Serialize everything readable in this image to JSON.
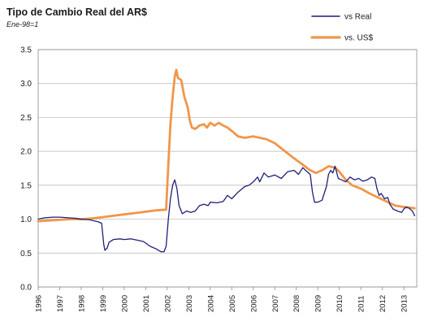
{
  "chart_data": {
    "type": "line",
    "title": "Tipo de Cambio Real del AR$",
    "subtitle": "Ene-98=1",
    "xlabel": "",
    "ylabel": "",
    "x_range": [
      1996,
      2013.6
    ],
    "ylim": [
      0,
      3.5
    ],
    "y_ticks": [
      "0.0",
      "0.5",
      "1.0",
      "1.5",
      "2.0",
      "2.5",
      "3.0",
      "3.5"
    ],
    "y_tick_values": [
      0,
      0.5,
      1.0,
      1.5,
      2.0,
      2.5,
      3.0,
      3.5
    ],
    "x_ticks": [
      "1996",
      "1997",
      "1998",
      "1999",
      "2000",
      "2001",
      "2002",
      "2003",
      "2004",
      "2005",
      "2006",
      "2007",
      "2008",
      "2009",
      "2010",
      "2011",
      "2012",
      "2013"
    ],
    "x_tick_values": [
      1996,
      1997,
      1998,
      1999,
      2000,
      2001,
      2002,
      2003,
      2004,
      2005,
      2006,
      2007,
      2008,
      2009,
      2010,
      2011,
      2012,
      2013
    ],
    "grid": "horizontal",
    "legend_position": "top-right",
    "series": [
      {
        "name": "vs Real",
        "color": "#1f1f7a",
        "points": [
          [
            1996.0,
            1.0
          ],
          [
            1996.3,
            1.02
          ],
          [
            1996.7,
            1.03
          ],
          [
            1997.0,
            1.03
          ],
          [
            1997.4,
            1.02
          ],
          [
            1997.8,
            1.01
          ],
          [
            1998.0,
            1.0
          ],
          [
            1998.4,
            0.99
          ],
          [
            1998.8,
            0.96
          ],
          [
            1998.95,
            0.94
          ],
          [
            1999.05,
            0.62
          ],
          [
            1999.1,
            0.54
          ],
          [
            1999.2,
            0.57
          ],
          [
            1999.3,
            0.66
          ],
          [
            1999.5,
            0.7
          ],
          [
            1999.8,
            0.71
          ],
          [
            2000.0,
            0.7
          ],
          [
            2000.3,
            0.71
          ],
          [
            2000.6,
            0.69
          ],
          [
            2000.9,
            0.67
          ],
          [
            2001.2,
            0.6
          ],
          [
            2001.5,
            0.56
          ],
          [
            2001.7,
            0.52
          ],
          [
            2001.85,
            0.52
          ],
          [
            2001.95,
            0.6
          ],
          [
            2002.05,
            1.0
          ],
          [
            2002.15,
            1.3
          ],
          [
            2002.25,
            1.5
          ],
          [
            2002.35,
            1.58
          ],
          [
            2002.45,
            1.45
          ],
          [
            2002.55,
            1.2
          ],
          [
            2002.7,
            1.08
          ],
          [
            2002.9,
            1.12
          ],
          [
            2003.1,
            1.1
          ],
          [
            2003.3,
            1.12
          ],
          [
            2003.5,
            1.2
          ],
          [
            2003.7,
            1.22
          ],
          [
            2003.9,
            1.2
          ],
          [
            2004.0,
            1.25
          ],
          [
            2004.3,
            1.24
          ],
          [
            2004.6,
            1.26
          ],
          [
            2004.8,
            1.35
          ],
          [
            2005.0,
            1.3
          ],
          [
            2005.3,
            1.4
          ],
          [
            2005.6,
            1.48
          ],
          [
            2005.8,
            1.5
          ],
          [
            2006.0,
            1.55
          ],
          [
            2006.2,
            1.62
          ],
          [
            2006.3,
            1.55
          ],
          [
            2006.5,
            1.68
          ],
          [
            2006.7,
            1.62
          ],
          [
            2007.0,
            1.65
          ],
          [
            2007.3,
            1.6
          ],
          [
            2007.6,
            1.7
          ],
          [
            2007.9,
            1.72
          ],
          [
            2008.1,
            1.66
          ],
          [
            2008.3,
            1.76
          ],
          [
            2008.5,
            1.7
          ],
          [
            2008.65,
            1.66
          ],
          [
            2008.75,
            1.4
          ],
          [
            2008.85,
            1.25
          ],
          [
            2009.0,
            1.25
          ],
          [
            2009.2,
            1.28
          ],
          [
            2009.4,
            1.48
          ],
          [
            2009.5,
            1.66
          ],
          [
            2009.6,
            1.72
          ],
          [
            2009.7,
            1.68
          ],
          [
            2009.8,
            1.78
          ],
          [
            2009.95,
            1.6
          ],
          [
            2010.1,
            1.58
          ],
          [
            2010.3,
            1.55
          ],
          [
            2010.5,
            1.62
          ],
          [
            2010.7,
            1.58
          ],
          [
            2010.9,
            1.6
          ],
          [
            2011.1,
            1.56
          ],
          [
            2011.3,
            1.58
          ],
          [
            2011.5,
            1.62
          ],
          [
            2011.65,
            1.6
          ],
          [
            2011.75,
            1.45
          ],
          [
            2011.85,
            1.35
          ],
          [
            2011.95,
            1.38
          ],
          [
            2012.1,
            1.3
          ],
          [
            2012.25,
            1.32
          ],
          [
            2012.35,
            1.22
          ],
          [
            2012.5,
            1.15
          ],
          [
            2012.7,
            1.12
          ],
          [
            2012.9,
            1.1
          ],
          [
            2013.0,
            1.15
          ],
          [
            2013.1,
            1.18
          ],
          [
            2013.25,
            1.16
          ],
          [
            2013.4,
            1.12
          ],
          [
            2013.5,
            1.05
          ]
        ]
      },
      {
        "name": "vs. US$",
        "color": "#f0964a",
        "points": [
          [
            1996.0,
            0.97
          ],
          [
            1996.5,
            0.98
          ],
          [
            1997.0,
            0.99
          ],
          [
            1997.5,
            1.0
          ],
          [
            1998.0,
            1.0
          ],
          [
            1998.5,
            1.01
          ],
          [
            1999.0,
            1.03
          ],
          [
            1999.5,
            1.05
          ],
          [
            2000.0,
            1.07
          ],
          [
            2000.5,
            1.09
          ],
          [
            2001.0,
            1.11
          ],
          [
            2001.5,
            1.13
          ],
          [
            2001.95,
            1.14
          ],
          [
            2002.05,
            1.8
          ],
          [
            2002.15,
            2.4
          ],
          [
            2002.25,
            2.8
          ],
          [
            2002.35,
            3.1
          ],
          [
            2002.42,
            3.2
          ],
          [
            2002.5,
            3.08
          ],
          [
            2002.65,
            3.05
          ],
          [
            2002.8,
            2.8
          ],
          [
            2002.95,
            2.65
          ],
          [
            2003.05,
            2.45
          ],
          [
            2003.15,
            2.35
          ],
          [
            2003.3,
            2.33
          ],
          [
            2003.5,
            2.38
          ],
          [
            2003.7,
            2.4
          ],
          [
            2003.85,
            2.35
          ],
          [
            2004.0,
            2.42
          ],
          [
            2004.2,
            2.38
          ],
          [
            2004.4,
            2.42
          ],
          [
            2004.6,
            2.38
          ],
          [
            2004.8,
            2.35
          ],
          [
            2005.0,
            2.3
          ],
          [
            2005.3,
            2.22
          ],
          [
            2005.6,
            2.2
          ],
          [
            2006.0,
            2.22
          ],
          [
            2006.3,
            2.2
          ],
          [
            2006.6,
            2.18
          ],
          [
            2007.0,
            2.12
          ],
          [
            2007.4,
            2.02
          ],
          [
            2007.8,
            1.92
          ],
          [
            2008.1,
            1.85
          ],
          [
            2008.4,
            1.78
          ],
          [
            2008.6,
            1.73
          ],
          [
            2008.9,
            1.68
          ],
          [
            2009.2,
            1.72
          ],
          [
            2009.5,
            1.78
          ],
          [
            2009.8,
            1.76
          ],
          [
            2010.0,
            1.7
          ],
          [
            2010.3,
            1.58
          ],
          [
            2010.6,
            1.5
          ],
          [
            2011.0,
            1.45
          ],
          [
            2011.4,
            1.38
          ],
          [
            2011.8,
            1.32
          ],
          [
            2012.2,
            1.26
          ],
          [
            2012.6,
            1.2
          ],
          [
            2013.0,
            1.18
          ],
          [
            2013.3,
            1.17
          ],
          [
            2013.5,
            1.16
          ]
        ]
      }
    ]
  }
}
